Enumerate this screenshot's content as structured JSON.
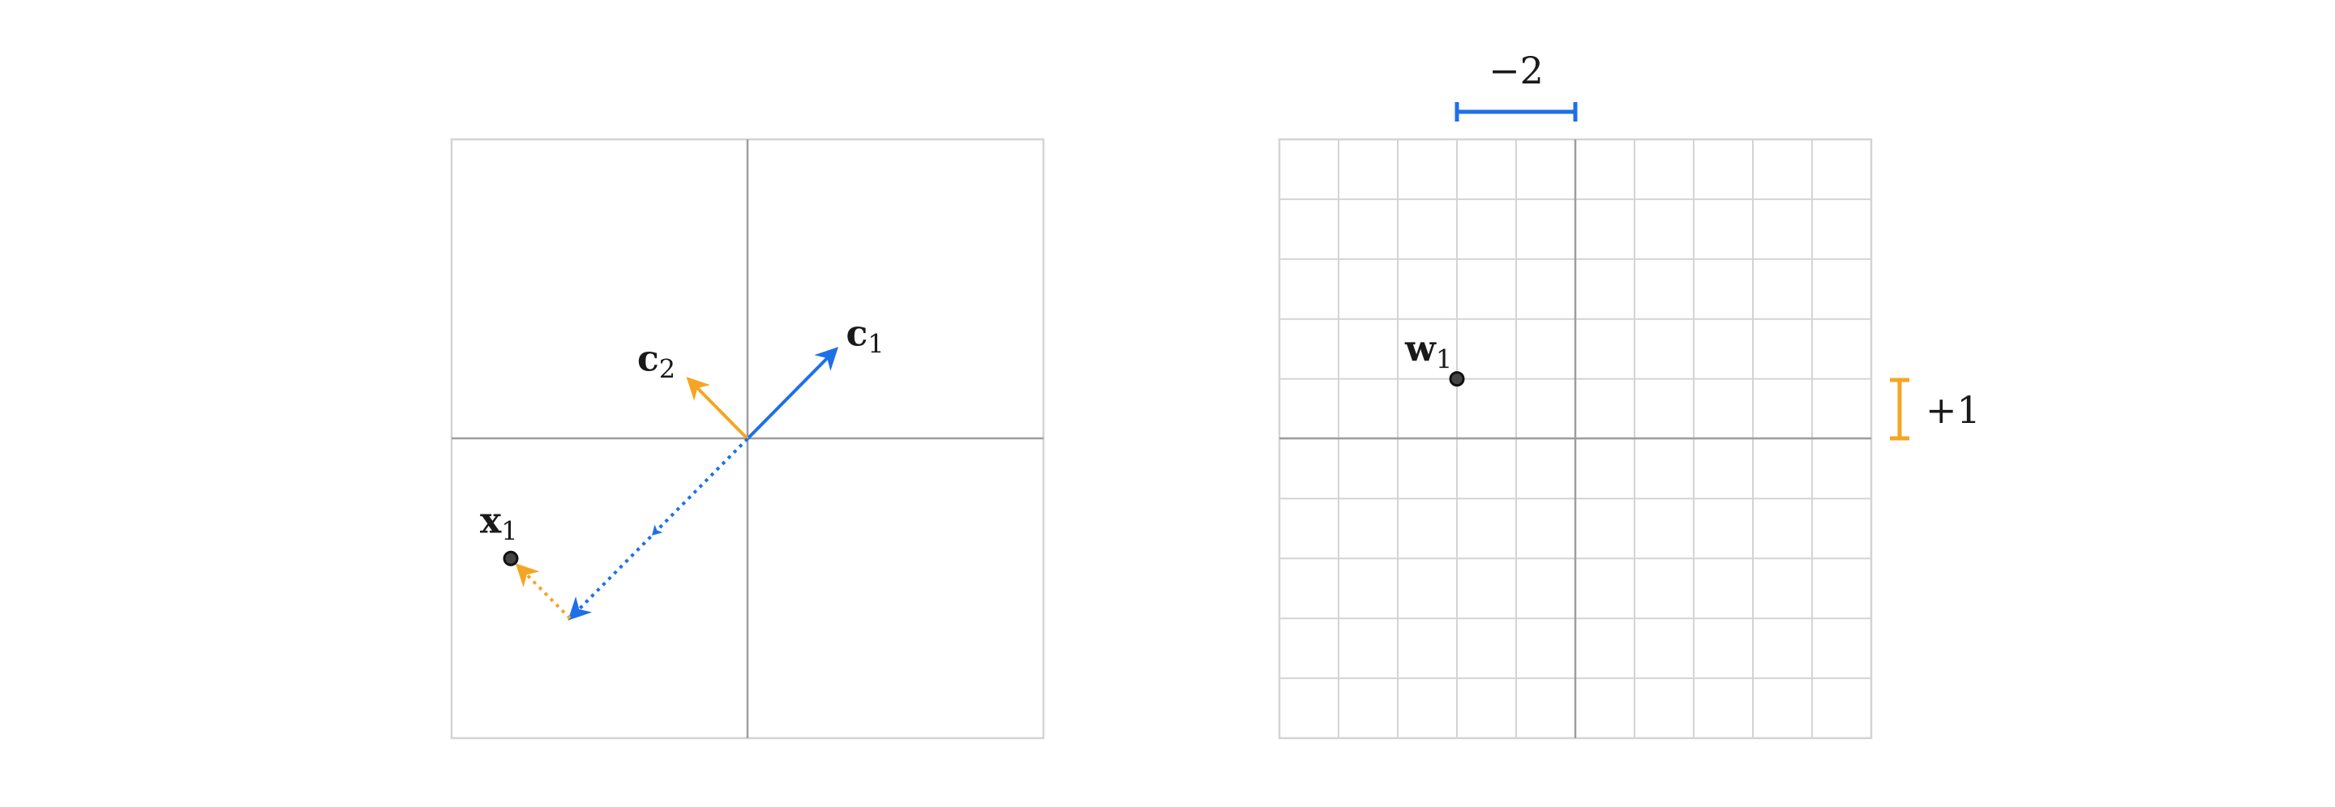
{
  "colors": {
    "blue": "#1f6fe8",
    "orange": "#f5a524",
    "grid": "#d4d4d4",
    "axis": "#9e9e9e",
    "point": "#444444"
  },
  "left_panel": {
    "x_range": [
      -5,
      5
    ],
    "y_range": [
      -5,
      5
    ],
    "vector_c1": {
      "label": "c",
      "subscript": "1",
      "to": [
        1.5,
        1.5
      ]
    },
    "vector_c2": {
      "label": "c",
      "subscript": "2",
      "to": [
        -1,
        1
      ]
    },
    "point_x1": {
      "label": "x",
      "subscript": "1",
      "at": [
        -4,
        -2
      ]
    },
    "path_blue_to": [
      -3,
      -3
    ],
    "path_orange_to": [
      -4,
      -2
    ]
  },
  "right_panel": {
    "x_range": [
      -5,
      5
    ],
    "y_range": [
      -5,
      5
    ],
    "point_w1": {
      "label": "w",
      "subscript": "1",
      "at": [
        -2,
        1
      ]
    },
    "blue_bracket_label": "−2",
    "orange_bracket_label": "+1"
  }
}
